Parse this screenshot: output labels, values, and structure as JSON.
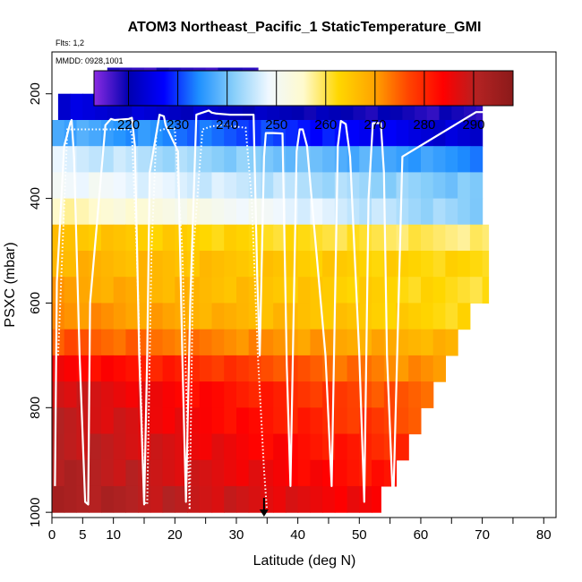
{
  "chart_data": {
    "type": "heatmap",
    "title": "ATOM3 Northeast_Pacific_1 StaticTemperature_GMI",
    "flights_label": "Flts: 1,2",
    "date_label": "MMDD: 0928,1001",
    "xlabel": "Latitude (deg N)",
    "ylabel": "PSXC (mbar)",
    "xlim": [
      0,
      82
    ],
    "ylim": [
      1010,
      120
    ],
    "x_ticks": [
      "0",
      "5",
      "10",
      "20",
      "30",
      "40",
      "50",
      "60",
      "70",
      "80"
    ],
    "x_tick_values": [
      0,
      5,
      10,
      20,
      30,
      40,
      50,
      60,
      70,
      80
    ],
    "x_minor_ticks": [
      15,
      25,
      35,
      45,
      55,
      65,
      75
    ],
    "y_ticks": [
      "200",
      "400",
      "600",
      "800",
      "1000"
    ],
    "y_tick_values": [
      200,
      400,
      600,
      800,
      1000
    ],
    "colorbar": {
      "min": 213,
      "max": 298,
      "tick_labels": [
        "220",
        "230",
        "240",
        "250",
        "260",
        "270",
        "280",
        "290"
      ],
      "tick_values": [
        220,
        230,
        240,
        250,
        260,
        270,
        280,
        290
      ],
      "colors": [
        "#8a2be2",
        "#0000b0",
        "#0000ff",
        "#1e90ff",
        "#87cefa",
        "#f0f8ff",
        "#fffacd",
        "#ffd700",
        "#ffa500",
        "#ff4500",
        "#ff0000",
        "#b22222",
        "#8b1a1a"
      ]
    },
    "pressure_levels": [
      175,
      225,
      275,
      325,
      375,
      425,
      475,
      525,
      575,
      625,
      675,
      725,
      775,
      825,
      875,
      925,
      975
    ],
    "level_lat_max": [
      33.5,
      70,
      70,
      70,
      70,
      70,
      71,
      71,
      71,
      68,
      66,
      64,
      62,
      60,
      58,
      56,
      53.5
    ],
    "level_lat_min": [
      9,
      1,
      0,
      0,
      0,
      0,
      0,
      0,
      0,
      0,
      0,
      0,
      0,
      0,
      0,
      0,
      0
    ],
    "level_temp_south": [
      218,
      224,
      238,
      247,
      250,
      257,
      266,
      268,
      270,
      272,
      276,
      285,
      289,
      290,
      291,
      292,
      293
    ],
    "level_temp_north": [
      218,
      218,
      222,
      234,
      240,
      241,
      258,
      262,
      261,
      262,
      267,
      270,
      274,
      276,
      279,
      281,
      284
    ],
    "flight_track_solid": {
      "lat": [
        0.5,
        0.8,
        2.0,
        3.0,
        3.2,
        3.6,
        4.5,
        5.4,
        5.9,
        6.2,
        8.7,
        9.6,
        10.2,
        12.5,
        13.0,
        13.5,
        14.2,
        15.0,
        15.5,
        15.9,
        17.5,
        18.2,
        18.5,
        20.5,
        21.2,
        21.8,
        22.5,
        23.5,
        25.5,
        26.0,
        26.8,
        29.0,
        32.8,
        33.4,
        33.8,
        34.5,
        34.8,
        35.0,
        35.3,
        36.0,
        37.5,
        38.2,
        38.8,
        39.8,
        40.3,
        40.8,
        41.5,
        44.5,
        45.5,
        46.5,
        47.0,
        47.8,
        48.5,
        50.0,
        50.8,
        51.5,
        52.2,
        53.5,
        54.0,
        54.5,
        55.5,
        57.0,
        69.0,
        70.5
      ],
      "psxc": [
        950,
        560,
        300,
        255,
        250,
        320,
        700,
        980,
        985,
        600,
        260,
        248,
        250,
        248,
        246,
        300,
        700,
        985,
        700,
        350,
        240,
        243,
        260,
        310,
        700,
        980,
        600,
        240,
        232,
        236,
        238,
        240,
        240,
        550,
        700,
        320,
        275,
        275,
        275,
        275,
        276,
        720,
        950,
        310,
        268,
        268,
        300,
        700,
        950,
        300,
        252,
        258,
        320,
        700,
        980,
        400,
        256,
        256,
        350,
        700,
        990,
        320,
        235,
        235
      ]
    },
    "flight_track_dotted": {
      "lat": [
        1.0,
        2.5,
        8.5,
        9.8,
        12.5,
        13.0,
        13.8,
        15.0,
        15.5,
        16.2,
        17.0,
        19.0,
        20.0,
        21.2,
        22.4,
        23.0,
        24.5,
        26.0,
        28.0,
        31.5,
        32.5,
        33.5,
        34.5,
        35.0
      ],
      "psxc": [
        700,
        268,
        268,
        268,
        268,
        275,
        500,
        980,
        985,
        500,
        272,
        265,
        268,
        500,
        995,
        500,
        268,
        262,
        260,
        265,
        400,
        700,
        920,
        1000
      ]
    },
    "arrow_lat": 34.5
  }
}
